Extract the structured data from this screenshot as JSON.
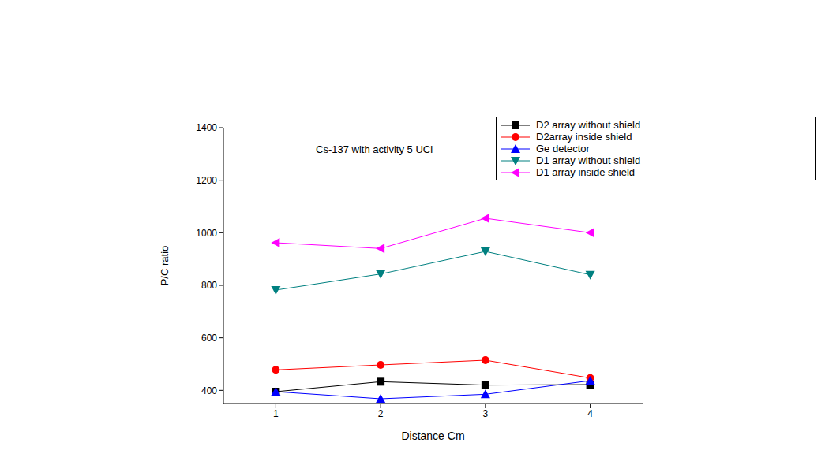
{
  "chart_data": {
    "type": "line",
    "title": "Cs-137 with activity 5 UCi",
    "x_label": "Distance Cm",
    "y_label": "P/C ratio",
    "x": [
      1,
      2,
      3,
      4
    ],
    "xlim": [
      0.5,
      4.5
    ],
    "xticks": [
      1,
      2,
      3,
      4
    ],
    "ylim": [
      350,
      1400
    ],
    "yticks": [
      400,
      600,
      800,
      1000,
      1200,
      1400
    ],
    "grid": false,
    "legend": "upper right",
    "series": [
      {
        "name": "D2 array without shield",
        "color": "#000000",
        "marker": "square",
        "values": [
          395,
          433,
          420,
          422
        ]
      },
      {
        "name": "D2array inside shield",
        "color": "#ff0000",
        "marker": "circle",
        "values": [
          478,
          497,
          515,
          447
        ]
      },
      {
        "name": "Ge detector",
        "color": "#0000ff",
        "marker": "triangle-up",
        "values": [
          395,
          368,
          385,
          437
        ]
      },
      {
        "name": "D1 array without shield",
        "color": "#008080",
        "marker": "triangle-down",
        "values": [
          782,
          843,
          929,
          840
        ]
      },
      {
        "name": "D1 array inside shield",
        "color": "#ff00ff",
        "marker": "triangle-left",
        "values": [
          962,
          940,
          1055,
          1000
        ]
      }
    ]
  }
}
